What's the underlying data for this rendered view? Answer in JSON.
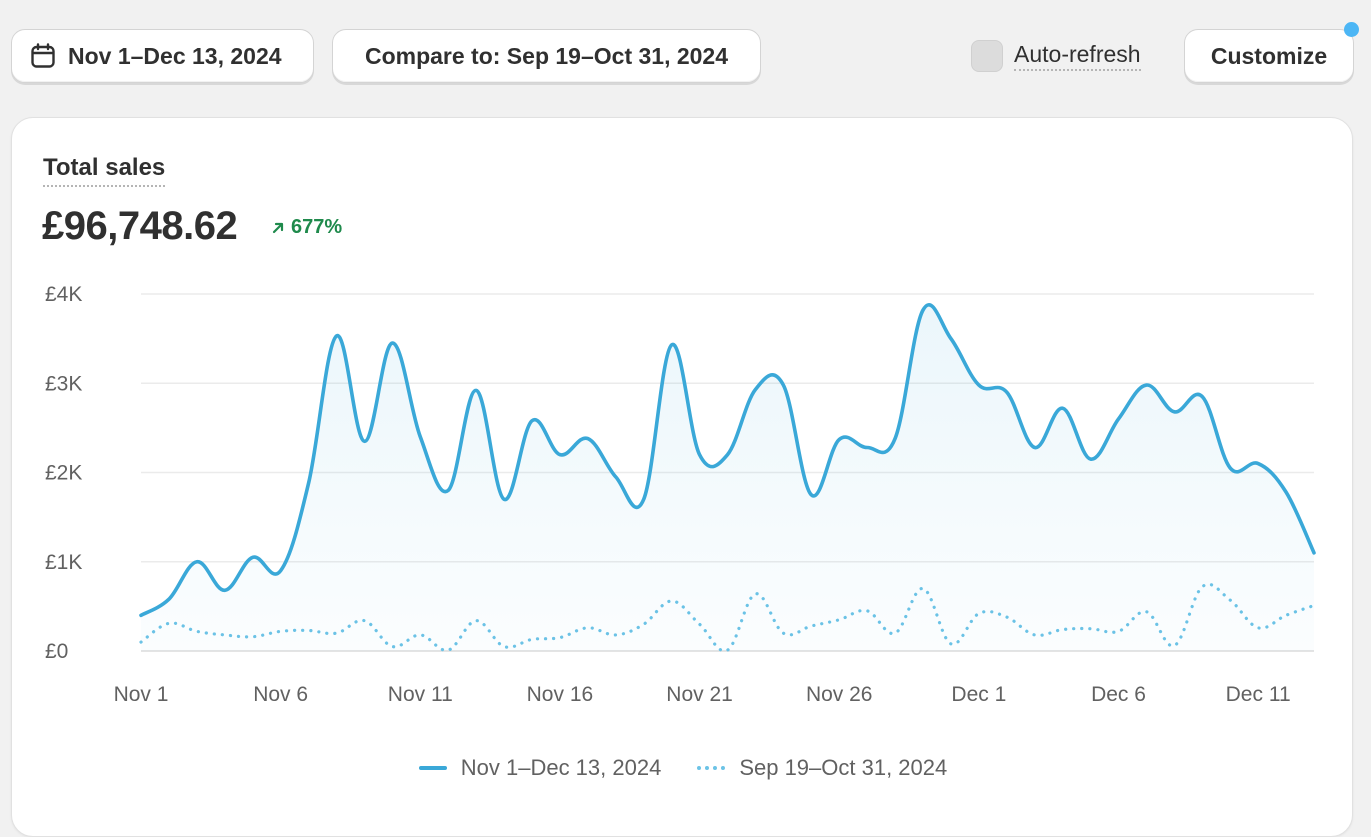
{
  "toolbar": {
    "date_range_label": "Nov 1–Dec 13, 2024",
    "compare_label": "Compare to: Sep 19–Oct 31, 2024",
    "auto_refresh_label": "Auto-refresh",
    "auto_refresh_checked": false,
    "customize_label": "Customize",
    "calendar_icon": "calendar-icon",
    "notification_dot_color": "#4cb6f5"
  },
  "card": {
    "title": "Total sales",
    "value": "£96,748.62",
    "change": "677%",
    "change_direction": "up",
    "change_color": "#1f8a4c"
  },
  "chart_data": {
    "type": "line",
    "title": "Total sales",
    "xlabel": "",
    "ylabel": "",
    "y_unit": "£",
    "ylim": [
      0,
      4000
    ],
    "y_ticks": [
      0,
      1000,
      2000,
      3000,
      4000
    ],
    "y_tick_labels": [
      "£0",
      "£1K",
      "£2K",
      "£3K",
      "£4K"
    ],
    "x": [
      "Nov 1",
      "Nov 2",
      "Nov 3",
      "Nov 4",
      "Nov 5",
      "Nov 6",
      "Nov 7",
      "Nov 8",
      "Nov 9",
      "Nov 10",
      "Nov 11",
      "Nov 12",
      "Nov 13",
      "Nov 14",
      "Nov 15",
      "Nov 16",
      "Nov 17",
      "Nov 18",
      "Nov 19",
      "Nov 20",
      "Nov 21",
      "Nov 22",
      "Nov 23",
      "Nov 24",
      "Nov 25",
      "Nov 26",
      "Nov 27",
      "Nov 28",
      "Nov 29",
      "Nov 30",
      "Dec 1",
      "Dec 2",
      "Dec 3",
      "Dec 4",
      "Dec 5",
      "Dec 6",
      "Dec 7",
      "Dec 8",
      "Dec 9",
      "Dec 10",
      "Dec 11",
      "Dec 12",
      "Dec 13"
    ],
    "x_tick_labels": [
      "Nov 1",
      "Nov 6",
      "Nov 11",
      "Nov 16",
      "Nov 21",
      "Nov 26",
      "Dec 1",
      "Dec 6",
      "Dec 11"
    ],
    "x_tick_indices": [
      0,
      5,
      10,
      15,
      20,
      25,
      30,
      35,
      40
    ],
    "grid": true,
    "legend_position": "bottom-center",
    "series": [
      {
        "name": "Nov 1–Dec 13, 2024",
        "style": "solid",
        "color": "#3aa8d8",
        "fill": true,
        "values": [
          400,
          580,
          1000,
          680,
          1050,
          900,
          1880,
          3530,
          2350,
          3450,
          2400,
          1800,
          2920,
          1700,
          2580,
          2200,
          2380,
          1950,
          1700,
          3430,
          2200,
          2200,
          2930,
          2980,
          1750,
          2370,
          2280,
          2380,
          3820,
          3500,
          2980,
          2900,
          2280,
          2720,
          2150,
          2600,
          2980,
          2680,
          2850,
          2050,
          2100,
          1780,
          1100
        ]
      },
      {
        "name": "Sep 19–Oct 31, 2024",
        "style": "dotted",
        "color": "#6cc3e6",
        "fill": false,
        "values": [
          100,
          310,
          220,
          180,
          160,
          220,
          230,
          200,
          340,
          50,
          180,
          10,
          340,
          50,
          130,
          150,
          260,
          180,
          300,
          560,
          300,
          10,
          640,
          200,
          280,
          350,
          450,
          200,
          700,
          80,
          420,
          380,
          180,
          240,
          250,
          220,
          440,
          60,
          720,
          570,
          260,
          400,
          510
        ]
      }
    ]
  }
}
